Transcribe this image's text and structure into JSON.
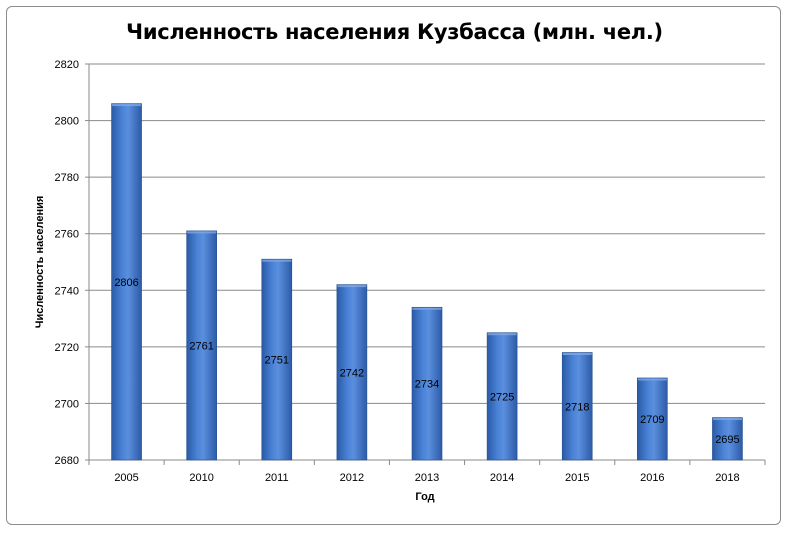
{
  "chart_data": {
    "type": "bar",
    "title": "Численность населения Кузбасса (млн. чел.)",
    "xlabel": "Год",
    "ylabel": "Численность населения",
    "categories": [
      "2005",
      "2010",
      "2011",
      "2012",
      "2013",
      "2014",
      "2015",
      "2016",
      "2018"
    ],
    "values": [
      2806,
      2761,
      2751,
      2742,
      2734,
      2725,
      2718,
      2709,
      2695
    ],
    "ylim": [
      2680,
      2820
    ],
    "yticks": [
      2680,
      2700,
      2720,
      2740,
      2760,
      2780,
      2800,
      2820
    ],
    "grid": true,
    "legend": "none",
    "colors": {
      "bar": "#3f74c4",
      "bar_dark": "#244f8f",
      "bar_light": "#7fa9e6",
      "grid": "#8a8a8a"
    }
  }
}
